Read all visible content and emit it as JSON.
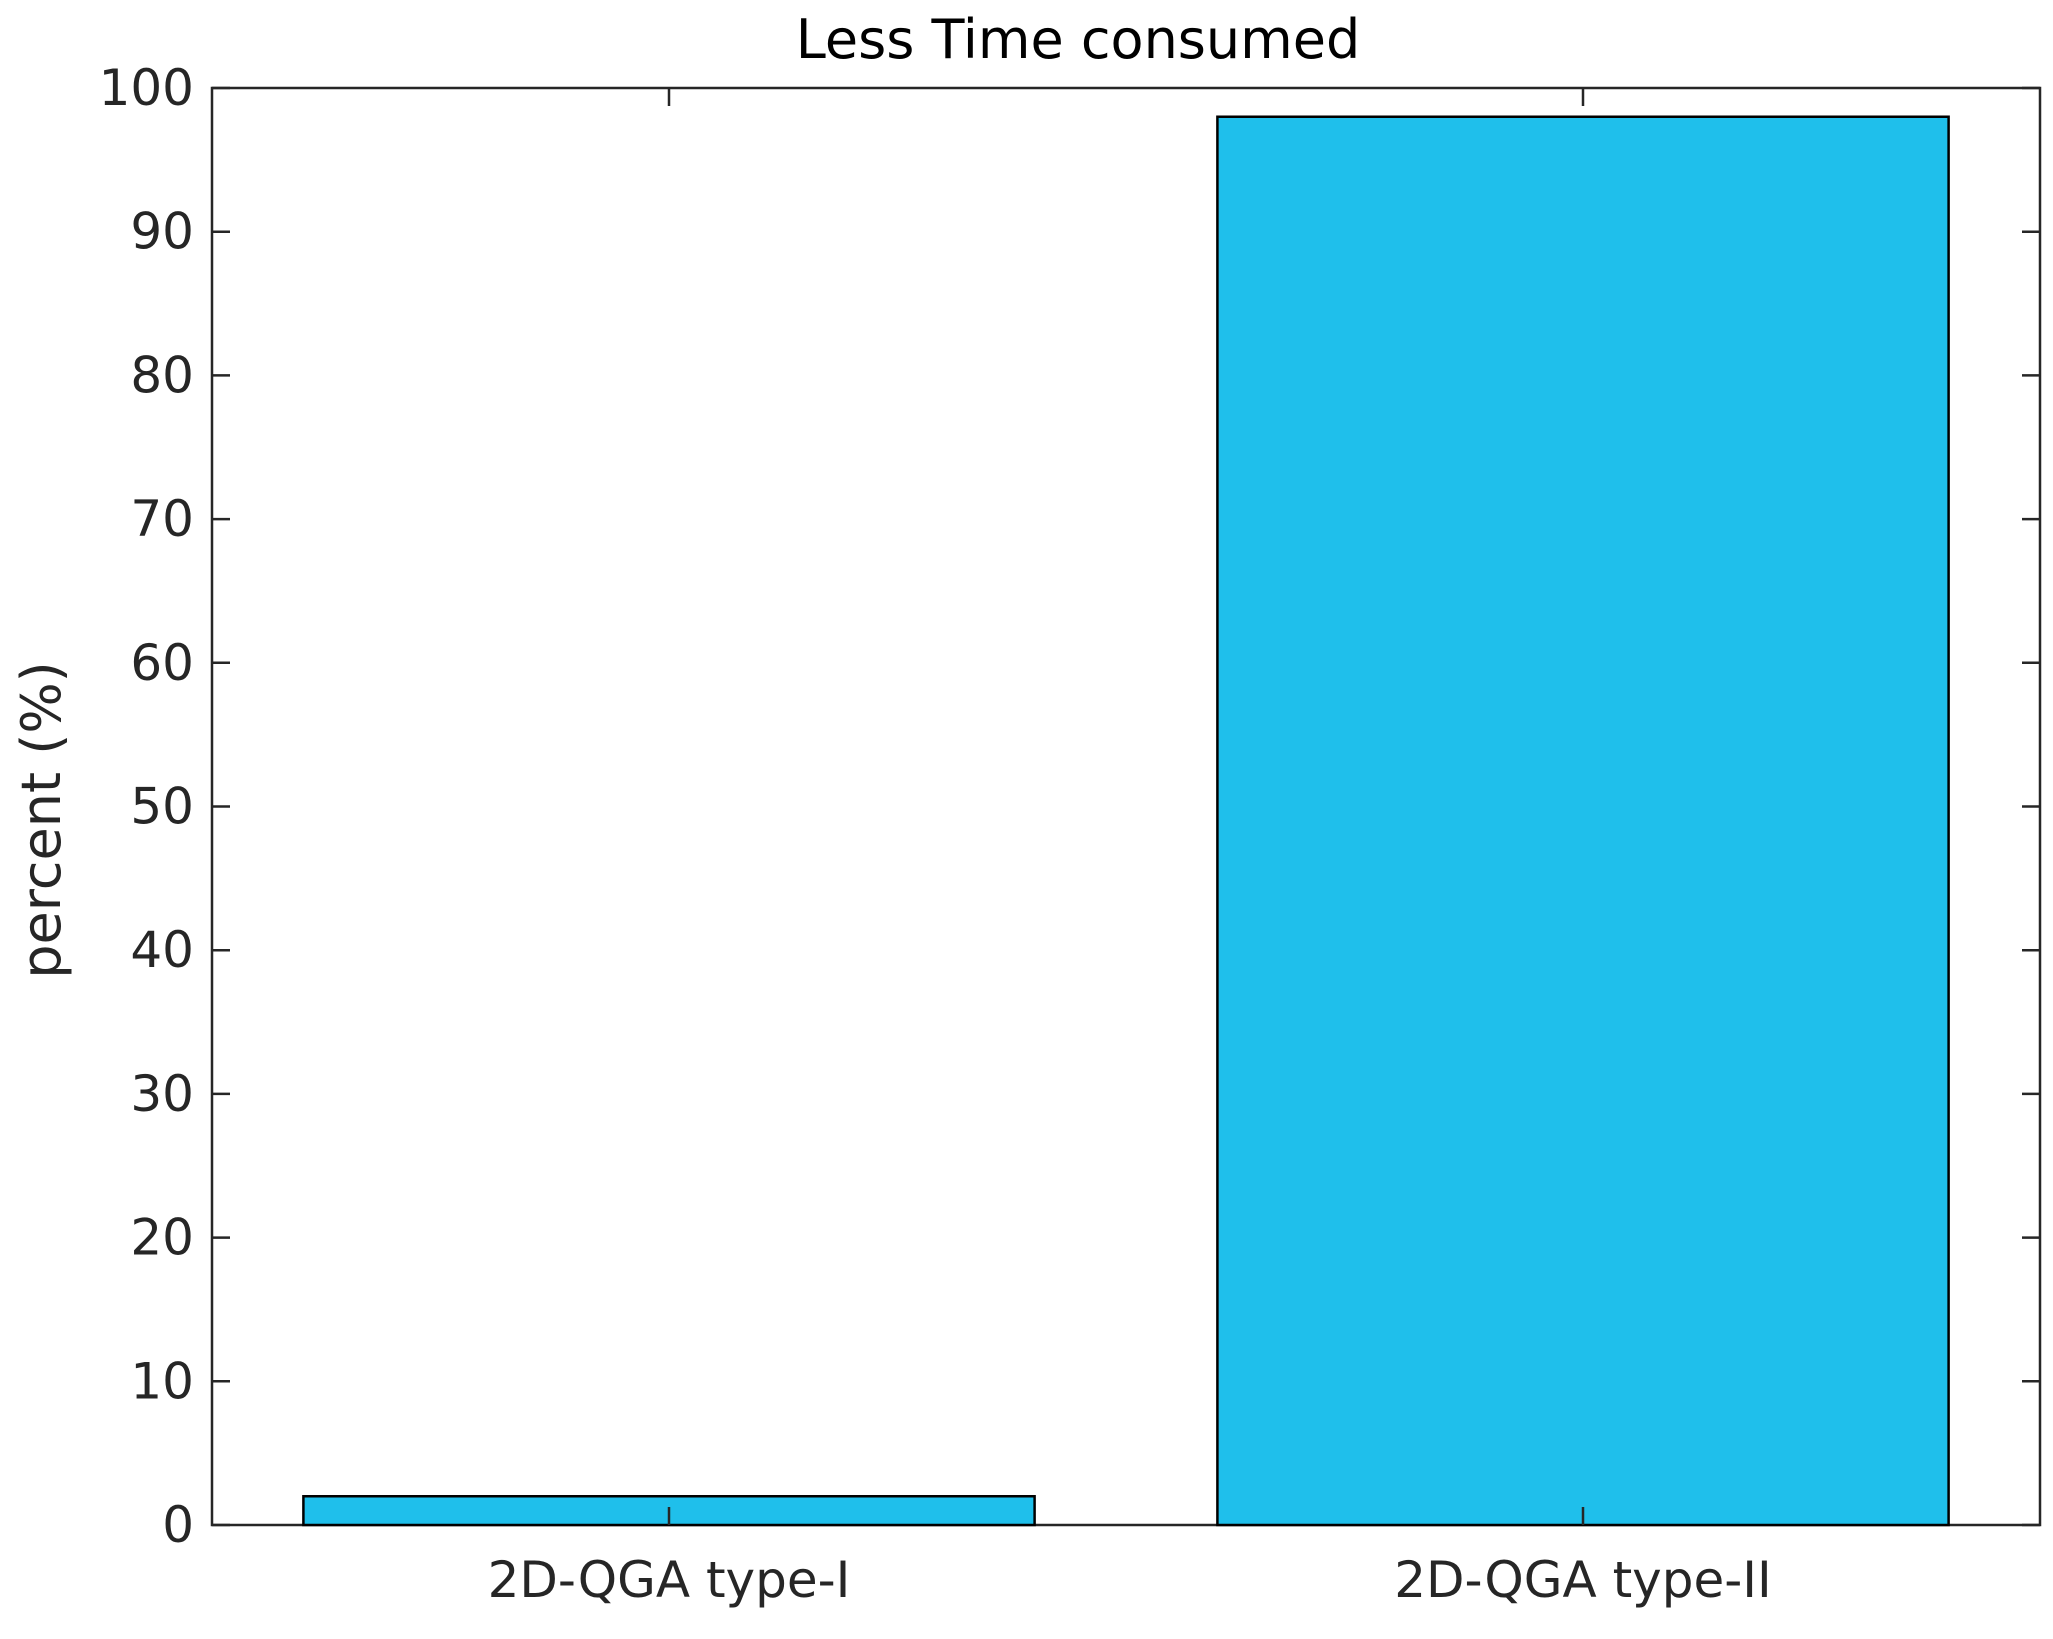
{
  "chart_data": {
    "type": "bar",
    "title": "Less Time consumed",
    "xlabel": "",
    "ylabel": "percent (%)",
    "categories": [
      "2D-QGA type-I",
      "2D-QGA type-II"
    ],
    "values": [
      2,
      98
    ],
    "ylim": [
      0,
      100
    ],
    "yticks": [
      0,
      10,
      20,
      30,
      40,
      50,
      60,
      70,
      80,
      90,
      100
    ],
    "bar_color": "#1fbfeb",
    "grid": false,
    "legend": "none"
  }
}
